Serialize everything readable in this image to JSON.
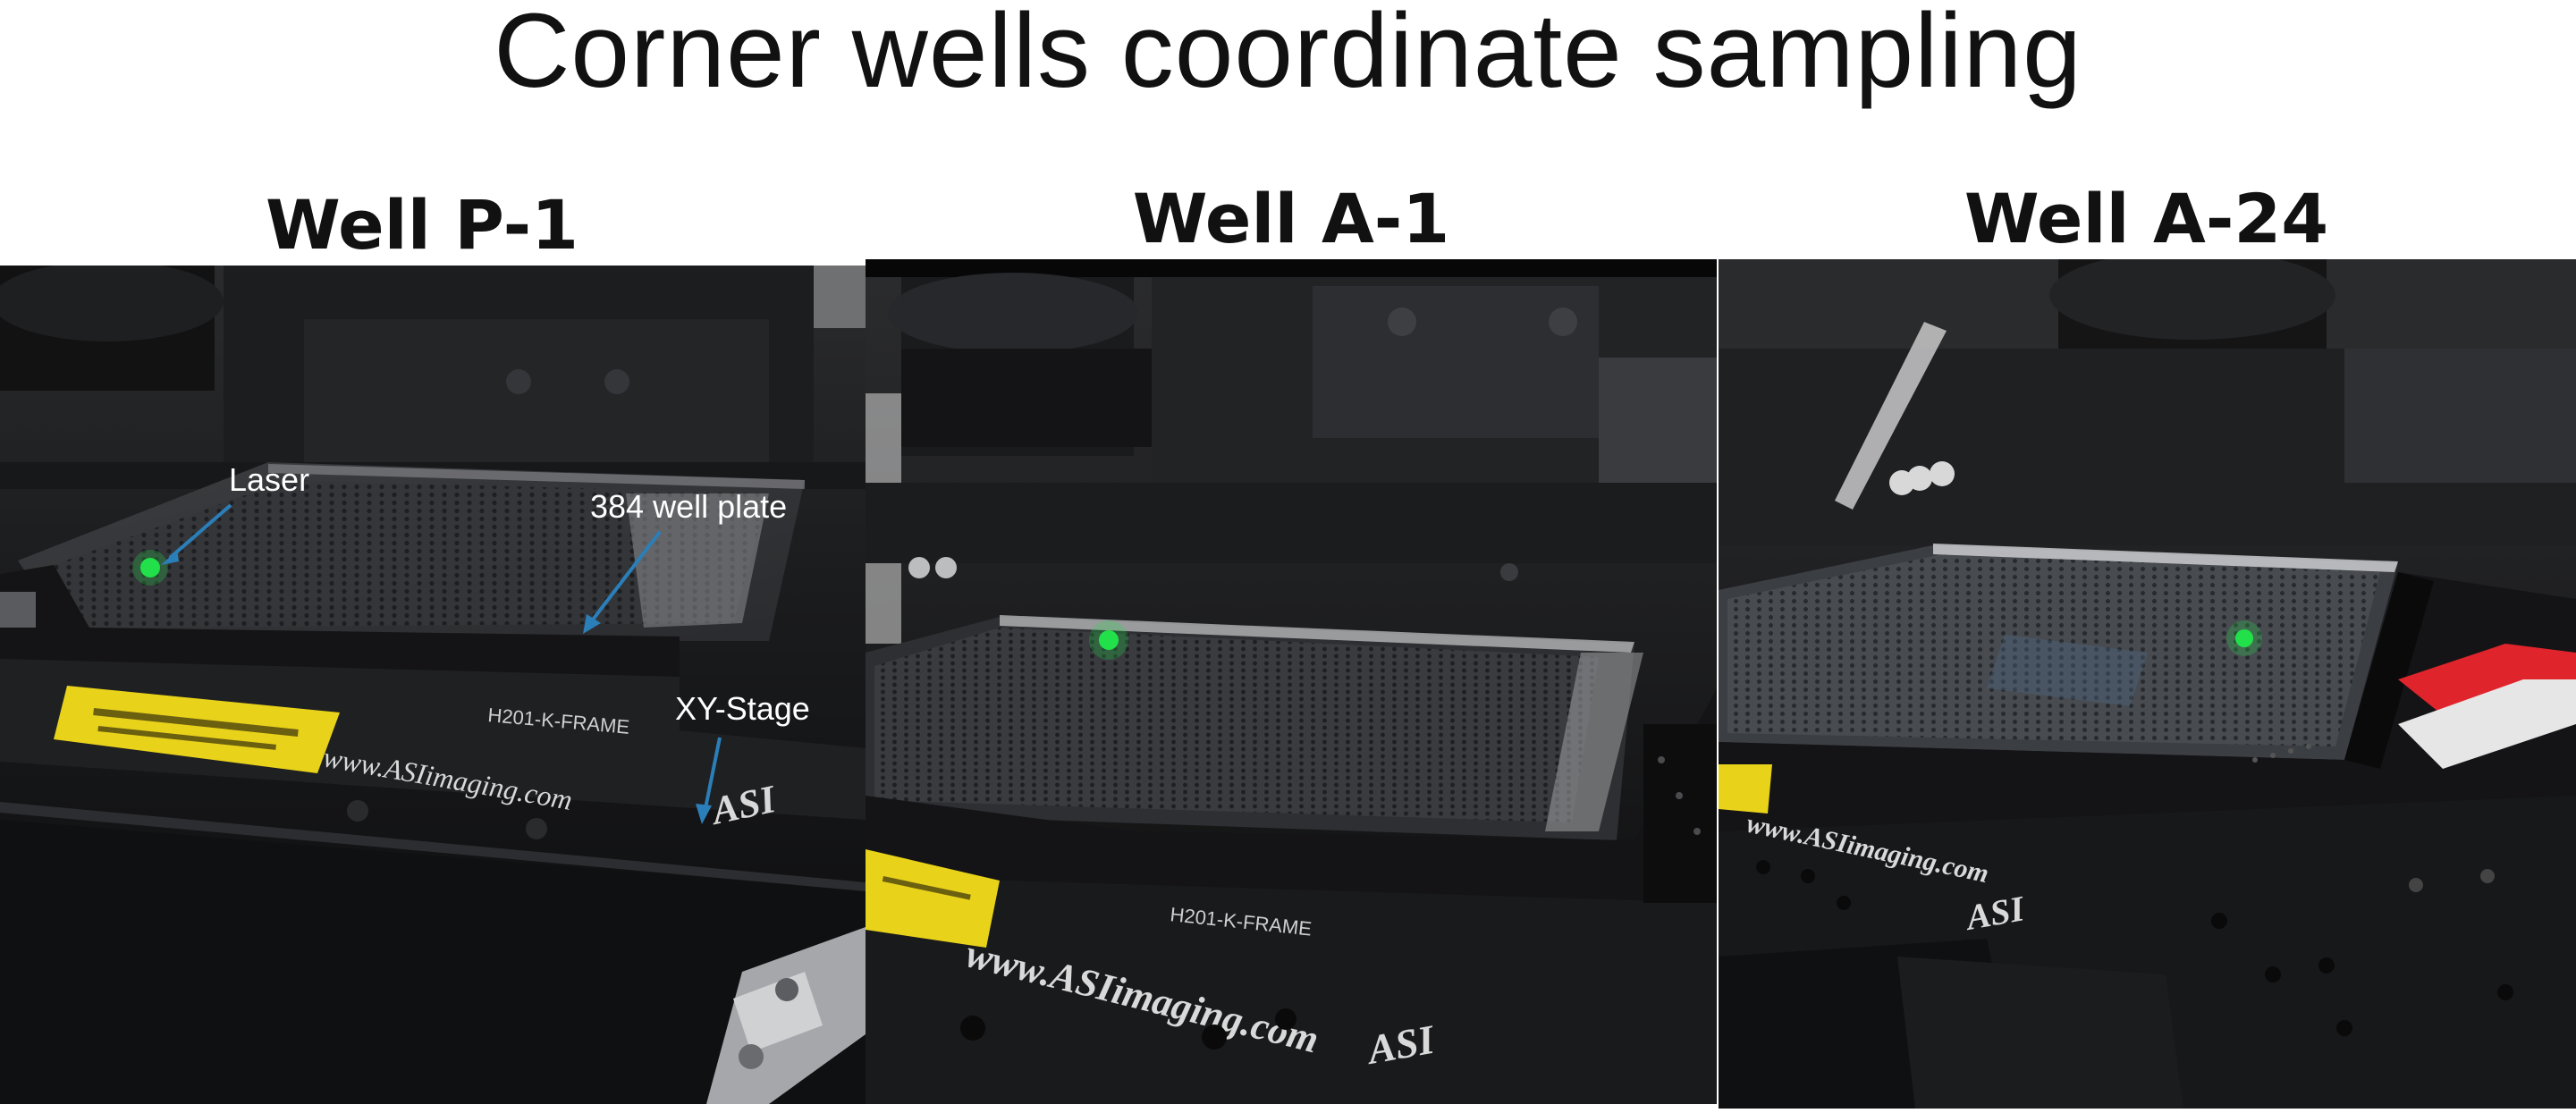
{
  "slide": {
    "title": "Corner wells coordinate sampling"
  },
  "panels": [
    {
      "title": "Well P-1",
      "annotations": {
        "laser": "Laser",
        "plate": "384 well plate",
        "stage": "XY-Stage"
      },
      "frame_label": "H201-K-FRAME",
      "stamp": "www.ASIimaging.com",
      "logo": "ASI"
    },
    {
      "title": "Well A-1",
      "frame_label": "H201-K-FRAME",
      "stamp": "www.ASIimaging.com",
      "logo": "ASI"
    },
    {
      "title": "Well A-24",
      "stamp": "www.ASIimaging.com",
      "logo": "ASI"
    }
  ],
  "colors": {
    "laser_spot": "#22e04a",
    "arrow": "#2b7fb8",
    "warning_label": "#e8d21a",
    "tape": "#e0242c"
  }
}
